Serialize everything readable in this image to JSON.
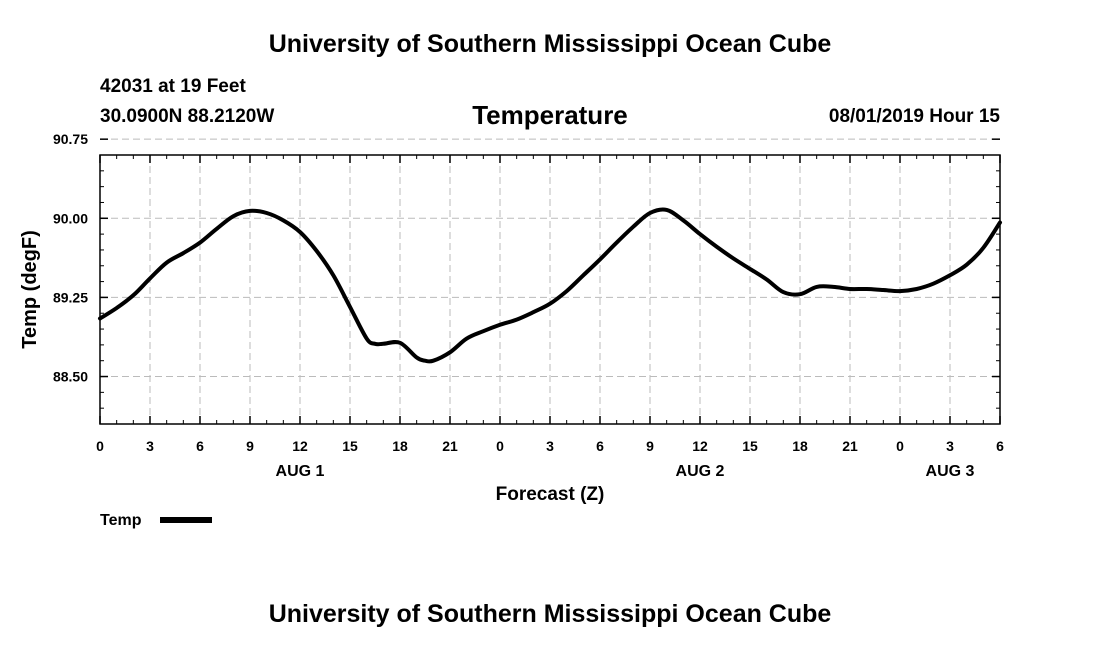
{
  "header": {
    "title": "University of Southern Mississippi Ocean Cube",
    "station": "42031 at 19 Feet",
    "coordinates": "30.0900N 88.2120W",
    "timestamp": "08/01/2019 Hour 15"
  },
  "footer": {
    "title": "University of Southern Mississippi Ocean Cube"
  },
  "chart_data": {
    "type": "line",
    "title": "Temperature",
    "xlabel": "Forecast (Z)",
    "ylabel": "Temp (degF)",
    "ylim": [
      88.05,
      90.6
    ],
    "yticks": [
      "88.50",
      "89.25",
      "90.00",
      "90.75"
    ],
    "xlim": [
      0,
      54
    ],
    "xtick_labels": [
      "0",
      "3",
      "6",
      "9",
      "12",
      "15",
      "18",
      "21",
      "0",
      "3",
      "6",
      "9",
      "12",
      "15",
      "18",
      "21",
      "0",
      "3",
      "6"
    ],
    "day_labels": [
      {
        "label": "AUG 1",
        "hour": 12
      },
      {
        "label": "AUG 2",
        "hour": 36
      },
      {
        "label": "AUG 3",
        "hour": 51
      }
    ],
    "grid": true,
    "legend": "bottom-left",
    "colors": {
      "line": "#000000",
      "grid": "#bbbbbb"
    },
    "series": [
      {
        "name": "Temp",
        "x": [
          0,
          1,
          2,
          3,
          4,
          5,
          6,
          7,
          8,
          9,
          10,
          11,
          12,
          13,
          14,
          15,
          16,
          16.5,
          17,
          18,
          19,
          19.5,
          20,
          21,
          22,
          23,
          24,
          25,
          26,
          27,
          28,
          29,
          30,
          31,
          32,
          33,
          34,
          35,
          36,
          37,
          38,
          39,
          40,
          41,
          42,
          43,
          44,
          45,
          46,
          47,
          48,
          49,
          50,
          51,
          52,
          53,
          54
        ],
        "values": [
          89.05,
          89.15,
          89.27,
          89.43,
          89.58,
          89.67,
          89.77,
          89.9,
          90.02,
          90.07,
          90.05,
          89.98,
          89.87,
          89.69,
          89.46,
          89.16,
          88.86,
          88.81,
          88.81,
          88.82,
          88.68,
          88.65,
          88.65,
          88.73,
          88.86,
          88.93,
          88.99,
          89.04,
          89.11,
          89.19,
          89.31,
          89.46,
          89.61,
          89.77,
          89.92,
          90.05,
          90.08,
          89.98,
          89.85,
          89.73,
          89.62,
          89.52,
          89.42,
          89.3,
          89.28,
          89.35,
          89.35,
          89.33,
          89.33,
          89.32,
          89.31,
          89.33,
          89.38,
          89.46,
          89.56,
          89.72,
          89.96
        ]
      }
    ]
  }
}
